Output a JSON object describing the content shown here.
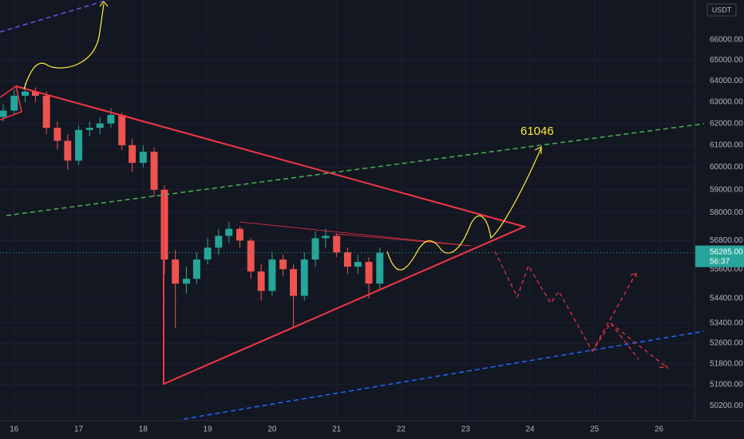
{
  "chart_data": {
    "type": "candlestick",
    "currency": "USDT",
    "annotation": "61046",
    "x": [
      15.83,
      16,
      16.17,
      16.33,
      16.5,
      16.67,
      16.83,
      17,
      17.17,
      17.33,
      17.5,
      17.67,
      17.83,
      18,
      18.17,
      18.33,
      18.5,
      18.67,
      18.83,
      19,
      19.17,
      19.33,
      19.5,
      19.67,
      19.83,
      20,
      20.17,
      20.33,
      20.5,
      20.67,
      20.83,
      21,
      21.17,
      21.33,
      21.5,
      21.67
    ],
    "open": [
      62300,
      62600,
      63300,
      63500,
      63300,
      61800,
      61200,
      60300,
      61700,
      61800,
      62000,
      62400,
      61000,
      60200,
      60700,
      59000,
      56000,
      55000,
      55200,
      56000,
      56500,
      57000,
      57300,
      56800,
      55500,
      54700,
      56000,
      55600,
      54500,
      56000,
      56900,
      57000,
      56300,
      55700,
      55900,
      55000
    ],
    "high": [
      62900,
      63600,
      63900,
      63700,
      63500,
      62100,
      61500,
      61900,
      62100,
      62300,
      62700,
      62500,
      61300,
      61000,
      60900,
      59200,
      56400,
      55700,
      56300,
      56900,
      57300,
      57600,
      57400,
      56900,
      55800,
      56300,
      56200,
      55800,
      56300,
      57200,
      57300,
      57100,
      56500,
      56200,
      56100,
      56500
    ],
    "low": [
      62100,
      62400,
      63000,
      63000,
      61500,
      60800,
      59900,
      60100,
      61400,
      61500,
      61800,
      60800,
      59800,
      60000,
      58700,
      55400,
      53200,
      54600,
      55000,
      55800,
      56200,
      56700,
      56500,
      55200,
      54300,
      54500,
      55300,
      53200,
      54300,
      55700,
      56500,
      56100,
      55400,
      55400,
      54400,
      54800
    ],
    "close": [
      62600,
      63300,
      63500,
      63300,
      61800,
      61200,
      60300,
      61700,
      61800,
      62000,
      62400,
      61000,
      60200,
      60700,
      59000,
      56000,
      55000,
      55200,
      56000,
      56500,
      57000,
      57300,
      56800,
      55500,
      54700,
      56000,
      55600,
      54500,
      56000,
      56900,
      57000,
      56300,
      55700,
      55900,
      55000,
      56285
    ],
    "up_color": "#26a69a",
    "down_color": "#ef5350",
    "last_price": {
      "value": 56285,
      "label": "56285.00"
    },
    "countdown": "56:37",
    "xlim": [
      15.78,
      26.55
    ],
    "xticks": [
      16,
      17,
      18,
      19,
      20,
      21,
      22,
      23,
      24,
      25,
      26
    ],
    "ylim": [
      49700,
      68000
    ],
    "log_scale": true,
    "grid": true,
    "yticks": [
      {
        "value": 66000,
        "label": "66000.00"
      },
      {
        "value": 65000,
        "label": "65000.00"
      },
      {
        "value": 64000,
        "label": "64000.00"
      },
      {
        "value": 63000,
        "label": "63000.00"
      },
      {
        "value": 62000,
        "label": "62000.00"
      },
      {
        "value": 61000,
        "label": "61000.00"
      },
      {
        "value": 60000,
        "label": "60000.00"
      },
      {
        "value": 59000,
        "label": "59000.00"
      },
      {
        "value": 58000,
        "label": "58000.00"
      },
      {
        "value": 56800,
        "label": "56800.00"
      },
      {
        "value": 55600,
        "label": "55600.00"
      },
      {
        "value": 54400,
        "label": "54400.00"
      },
      {
        "value": 53400,
        "label": "53400.00"
      },
      {
        "value": 52600,
        "label": "52600.00"
      },
      {
        "value": 51800,
        "label": "51800.00"
      },
      {
        "value": 51000,
        "label": "51000.00"
      },
      {
        "value": 50200,
        "label": "50200.00"
      }
    ]
  }
}
